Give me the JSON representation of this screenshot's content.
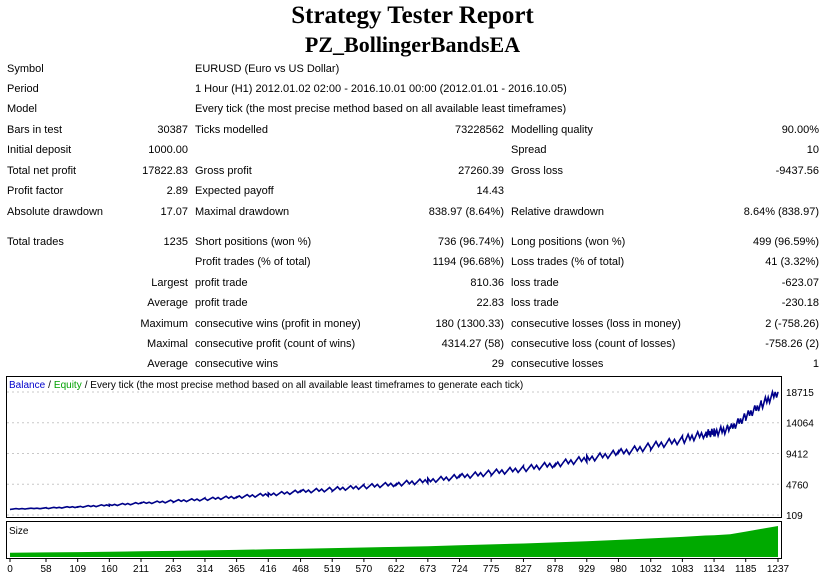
{
  "report": {
    "title": "Strategy Tester Report",
    "subtitle": "PZ_BollingerBandsEA"
  },
  "info": [
    {
      "label": "Symbol",
      "value": "EURUSD (Euro vs US Dollar)"
    },
    {
      "label": "Period",
      "value": "1 Hour (H1) 2012.01.02 02:00 - 2016.10.01 00:00 (2012.01.01 - 2016.10.05)"
    },
    {
      "label": "Model",
      "value": "Every tick (the most precise method based on all available least timeframes)"
    }
  ],
  "stats": {
    "bars_label": "Bars in test",
    "bars": "30387",
    "ticks_label": "Ticks modelled",
    "ticks": "73228562",
    "quality_label": "Modelling quality",
    "quality": "90.00%",
    "deposit_label": "Initial deposit",
    "deposit": "1000.00",
    "spread_label": "Spread",
    "spread": "10",
    "net_label": "Total net profit",
    "net": "17822.83",
    "gross_profit_label": "Gross profit",
    "gross_profit": "27260.39",
    "gross_loss_label": "Gross loss",
    "gross_loss": "-9437.56",
    "pf_label": "Profit factor",
    "pf": "2.89",
    "payoff_label": "Expected payoff",
    "payoff": "14.43",
    "abs_dd_label": "Absolute drawdown",
    "abs_dd": "17.07",
    "max_dd_label": "Maximal drawdown",
    "max_dd": "838.97 (8.64%)",
    "rel_dd_label": "Relative drawdown",
    "rel_dd": "8.64% (838.97)",
    "total_trades_label": "Total trades",
    "total_trades": "1235",
    "short_label": "Short positions (won %)",
    "short": "736 (96.74%)",
    "long_label": "Long positions (won %)",
    "long": "499 (96.59%)",
    "profit_trades_label": "Profit trades (% of total)",
    "profit_trades": "1194 (96.68%)",
    "loss_trades_label": "Loss trades (% of total)",
    "loss_trades": "41 (3.32%)",
    "largest_label": "Largest",
    "largest_profit_label": "profit trade",
    "largest_profit": "810.36",
    "largest_loss_label": "loss trade",
    "largest_loss": "-623.07",
    "average_label": "Average",
    "average_profit_label": "profit trade",
    "average_profit": "22.83",
    "average_loss_label": "loss trade",
    "average_loss": "-230.18",
    "maximum_label": "Maximum",
    "max_wins_label": "consecutive wins (profit in money)",
    "max_wins": "180 (1300.33)",
    "max_losses_label": "consecutive losses (loss in money)",
    "max_losses": "2 (-758.26)",
    "maximal_label": "Maximal",
    "maximal_profit_label": "consecutive profit (count of wins)",
    "maximal_profit": "4314.27 (58)",
    "maximal_loss_label": "consecutive loss (count of losses)",
    "maximal_loss": "-758.26 (2)",
    "average2_label": "Average",
    "avg_wins_label": "consecutive wins",
    "avg_wins": "29",
    "avg_losses_label": "consecutive losses",
    "avg_losses": "1"
  },
  "chart_data": {
    "type": "line",
    "title_balance": "Balance",
    "title_sep": "/",
    "title_equity": "Equity",
    "title_rest": "/ Every tick (the most precise method based on all available least timeframes to generate each tick)",
    "size_label": "Size",
    "colors": {
      "balance": "#00008b",
      "equity": "#00a000",
      "size": "#00aa00"
    },
    "y_ticks": [
      "18715",
      "14064",
      "9412",
      "4760",
      "109"
    ],
    "y_tick_values": [
      18715,
      14064,
      9412,
      4760,
      109
    ],
    "x_ticks": [
      "0",
      "58",
      "109",
      "160",
      "211",
      "263",
      "314",
      "365",
      "416",
      "468",
      "519",
      "570",
      "622",
      "673",
      "724",
      "775",
      "827",
      "878",
      "929",
      "980",
      "1032",
      "1083",
      "1134",
      "1185",
      "1237"
    ],
    "x_range": [
      0,
      1237
    ],
    "y_range": [
      109,
      18715
    ],
    "balance": [
      [
        0,
        1000
      ],
      [
        58,
        1150
      ],
      [
        109,
        1350
      ],
      [
        160,
        1600
      ],
      [
        211,
        1900
      ],
      [
        263,
        2200
      ],
      [
        314,
        2500
      ],
      [
        365,
        2850
      ],
      [
        416,
        3200
      ],
      [
        468,
        3650
      ],
      [
        519,
        4000
      ],
      [
        570,
        4400
      ],
      [
        622,
        4800
      ],
      [
        673,
        5300
      ],
      [
        724,
        5900
      ],
      [
        775,
        6500
      ],
      [
        827,
        7100
      ],
      [
        878,
        7800
      ],
      [
        929,
        8600
      ],
      [
        980,
        9500
      ],
      [
        1032,
        10500
      ],
      [
        1083,
        11500
      ],
      [
        1120,
        12400
      ],
      [
        1134,
        12600
      ],
      [
        1160,
        13200
      ],
      [
        1185,
        15000
      ],
      [
        1210,
        16800
      ],
      [
        1237,
        18715
      ]
    ]
  }
}
